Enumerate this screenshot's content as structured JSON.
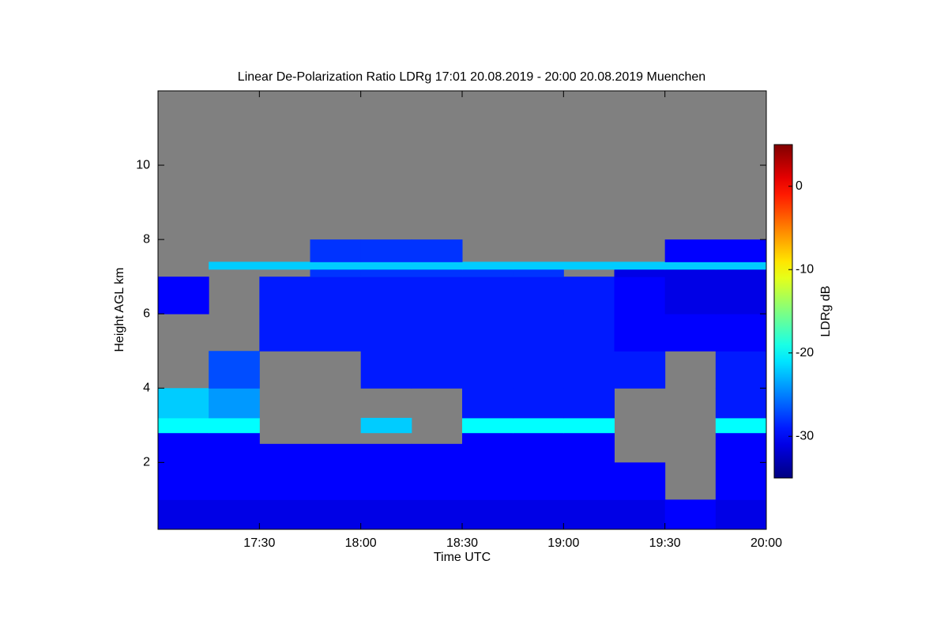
{
  "chart_data": {
    "type": "heatmap",
    "title": "Linear De-Polarization Ratio LDRg   17:01 20.08.2019 - 20:00 20.08.2019 Muenchen",
    "x_label": "Time UTC",
    "y_label": "Height AGL km",
    "colorbar_label": "LDRg dB",
    "missing_color": "#808080",
    "colormap": "jet",
    "xlim": [
      17,
      20
    ],
    "ylim": [
      0.2,
      12
    ],
    "xticks": [
      {
        "value": 17.5,
        "label": "17:30"
      },
      {
        "value": 18,
        "label": "18:00"
      },
      {
        "value": 18.5,
        "label": "18:30"
      },
      {
        "value": 19,
        "label": "19:00"
      },
      {
        "value": 19.5,
        "label": "19:30"
      },
      {
        "value": 20,
        "label": "20:00"
      }
    ],
    "yticks": [
      2,
      4,
      6,
      8,
      10
    ],
    "clim": [
      -35,
      5
    ],
    "cticks": [
      0,
      -10,
      -20,
      -30
    ],
    "x_bins": [
      17,
      17.25,
      17.5,
      17.75,
      18,
      18.25,
      18.5,
      18.75,
      19,
      19.25,
      19.5,
      19.75,
      20
    ],
    "y_bins": [
      0.2,
      1,
      2,
      2.5,
      2.8,
      3.2,
      4,
      5,
      6,
      7,
      7.2,
      7.4,
      8,
      12
    ],
    "z": [
      [
        -31,
        -31,
        -31,
        -31,
        -31,
        -31,
        -31,
        -31,
        -31,
        -31,
        -30,
        -31
      ],
      [
        -30,
        -30,
        -30,
        -30,
        -30,
        -30,
        -30,
        -30,
        -30,
        -30,
        null,
        -30
      ],
      [
        -30,
        -30,
        -30,
        -30,
        -30,
        -30,
        -30,
        -30,
        -30,
        null,
        null,
        -30
      ],
      [
        -30,
        -30,
        null,
        null,
        null,
        null,
        -30,
        -30,
        -30,
        null,
        null,
        -30
      ],
      [
        -20,
        -20,
        null,
        null,
        -22,
        null,
        -20,
        -20,
        -20,
        null,
        null,
        -20
      ],
      [
        -22,
        -24,
        null,
        null,
        null,
        null,
        -29,
        -29,
        -29,
        null,
        null,
        -29
      ],
      [
        null,
        -27,
        null,
        null,
        -29,
        -29,
        -29,
        -29,
        -29,
        -29,
        null,
        -29
      ],
      [
        null,
        null,
        -29,
        -29,
        -29,
        -29,
        -29,
        -29,
        -29,
        -30,
        -30,
        -30
      ],
      [
        -30,
        null,
        -29,
        -29,
        -29,
        -29,
        -29,
        -29,
        -29,
        -30,
        -31,
        -31
      ],
      [
        null,
        null,
        null,
        -28,
        -28,
        -28,
        -28,
        -28,
        null,
        -31,
        -31,
        -31
      ],
      [
        null,
        -22,
        -22,
        -22,
        -22,
        -22,
        -22,
        -22,
        -22,
        -22,
        -22,
        -22
      ],
      [
        null,
        null,
        null,
        -28,
        -28,
        -28,
        null,
        null,
        null,
        null,
        -30,
        -30
      ],
      [
        null,
        null,
        null,
        null,
        null,
        null,
        null,
        null,
        null,
        null,
        null,
        null
      ]
    ]
  }
}
